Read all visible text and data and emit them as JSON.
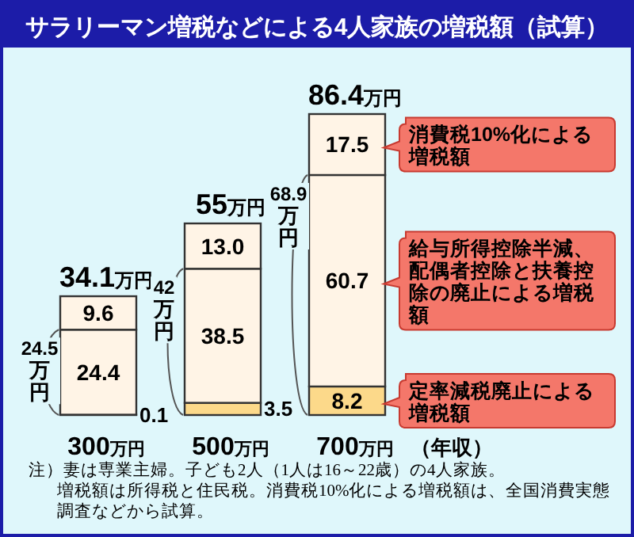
{
  "chart_data": {
    "type": "bar",
    "stacked": true,
    "title": "サラリーマン増税などによる4人家族の増税額（試算）",
    "xlabel": "（年収）",
    "categories": [
      "300万円",
      "500万円",
      "700万円"
    ],
    "series": [
      {
        "name": "定率減税廃止による増税額",
        "color": "#fcd98a",
        "values": [
          0.1,
          3.5,
          8.2
        ],
        "value_labels": [
          "0.1",
          "3.5",
          "8.2"
        ]
      },
      {
        "name": "給与所得控除半減、配偶者控除と扶養控除の廃止による増税額",
        "color": "#fff4e6",
        "values": [
          24.4,
          38.5,
          60.7
        ],
        "value_labels": [
          "24.4",
          "38.5",
          "60.7"
        ]
      },
      {
        "name": "消費税10%化による増税額",
        "color": "#fff4e6",
        "values": [
          9.6,
          13.0,
          17.5
        ],
        "value_labels": [
          "9.6",
          "13.0",
          "17.5"
        ]
      }
    ],
    "totals": [
      "34.1万円",
      "55万円",
      "86.4万円"
    ],
    "legend": "right",
    "annotations": [
      {
        "text": "24.5万円",
        "x": "300万円",
        "y": 24.5
      },
      {
        "text": "42万円",
        "x": "500万円",
        "y": 42
      },
      {
        "text": "68.9万円",
        "x": "700万円",
        "y": 68.9
      },
      "注）妻は専業主婦。子ども2人（1人は16～22歳）の4人家族。",
      "増税額は所得税と住民税。消費税10%化による増税額は、全国消費実態調査などから試算。"
    ]
  }
}
